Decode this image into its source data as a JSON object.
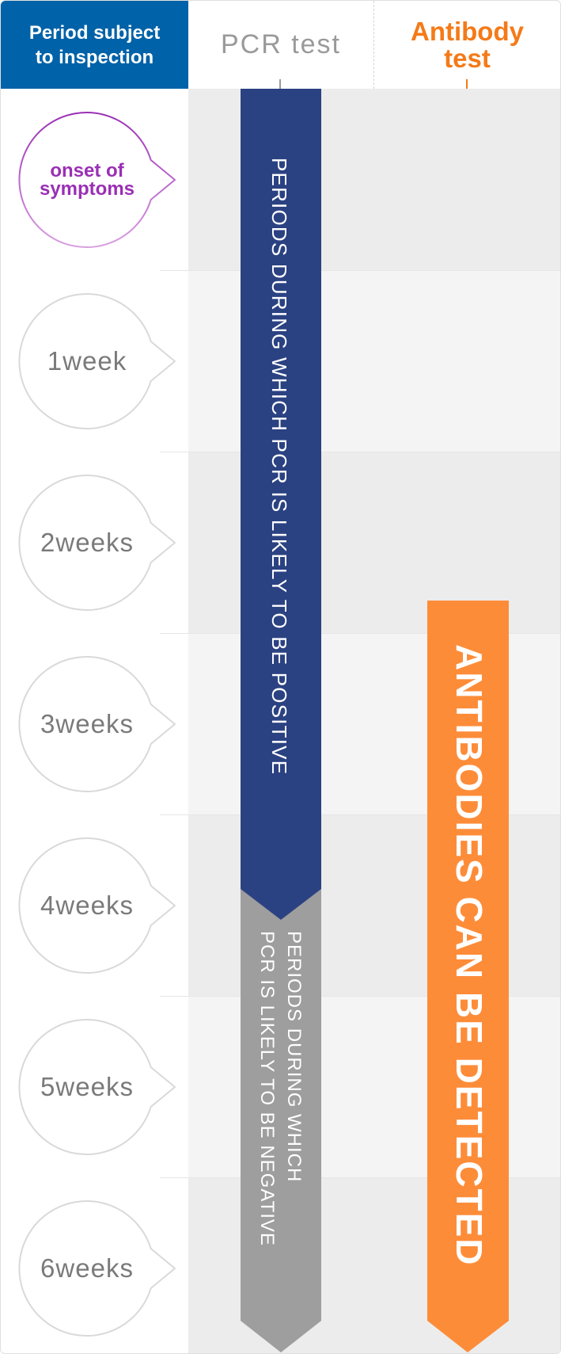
{
  "header": {
    "period_label": "Period subject to inspection",
    "pcr_label": "PCR test",
    "antibody_label": "Antibody test"
  },
  "periods": [
    {
      "label": "onset of symptoms"
    },
    {
      "label": "1week"
    },
    {
      "label": "2weeks"
    },
    {
      "label": "3weeks"
    },
    {
      "label": "4weeks"
    },
    {
      "label": "5weeks"
    },
    {
      "label": "6weeks"
    }
  ],
  "bars": {
    "pcr_positive": "PERIODS DURING WHICH PCR IS LIKELY TO BE POSITIVE",
    "pcr_negative_line1": "PERIODS DURING WHICH",
    "pcr_negative_line2": "PCR IS LIKELY TO BE NEGATIVE",
    "antibody": "ANTIBODIES CAN BE DETECTED"
  },
  "colors": {
    "header_blue": "#0062a8",
    "pcr_gray_text": "#9a9a9a",
    "antibody_orange": "#f47a18",
    "pcr_positive_bar": "#2b4282",
    "pcr_negative_bar": "#9e9e9e",
    "antibody_bar": "#fd8c39",
    "onset_purple": "#9a2fb5"
  }
}
